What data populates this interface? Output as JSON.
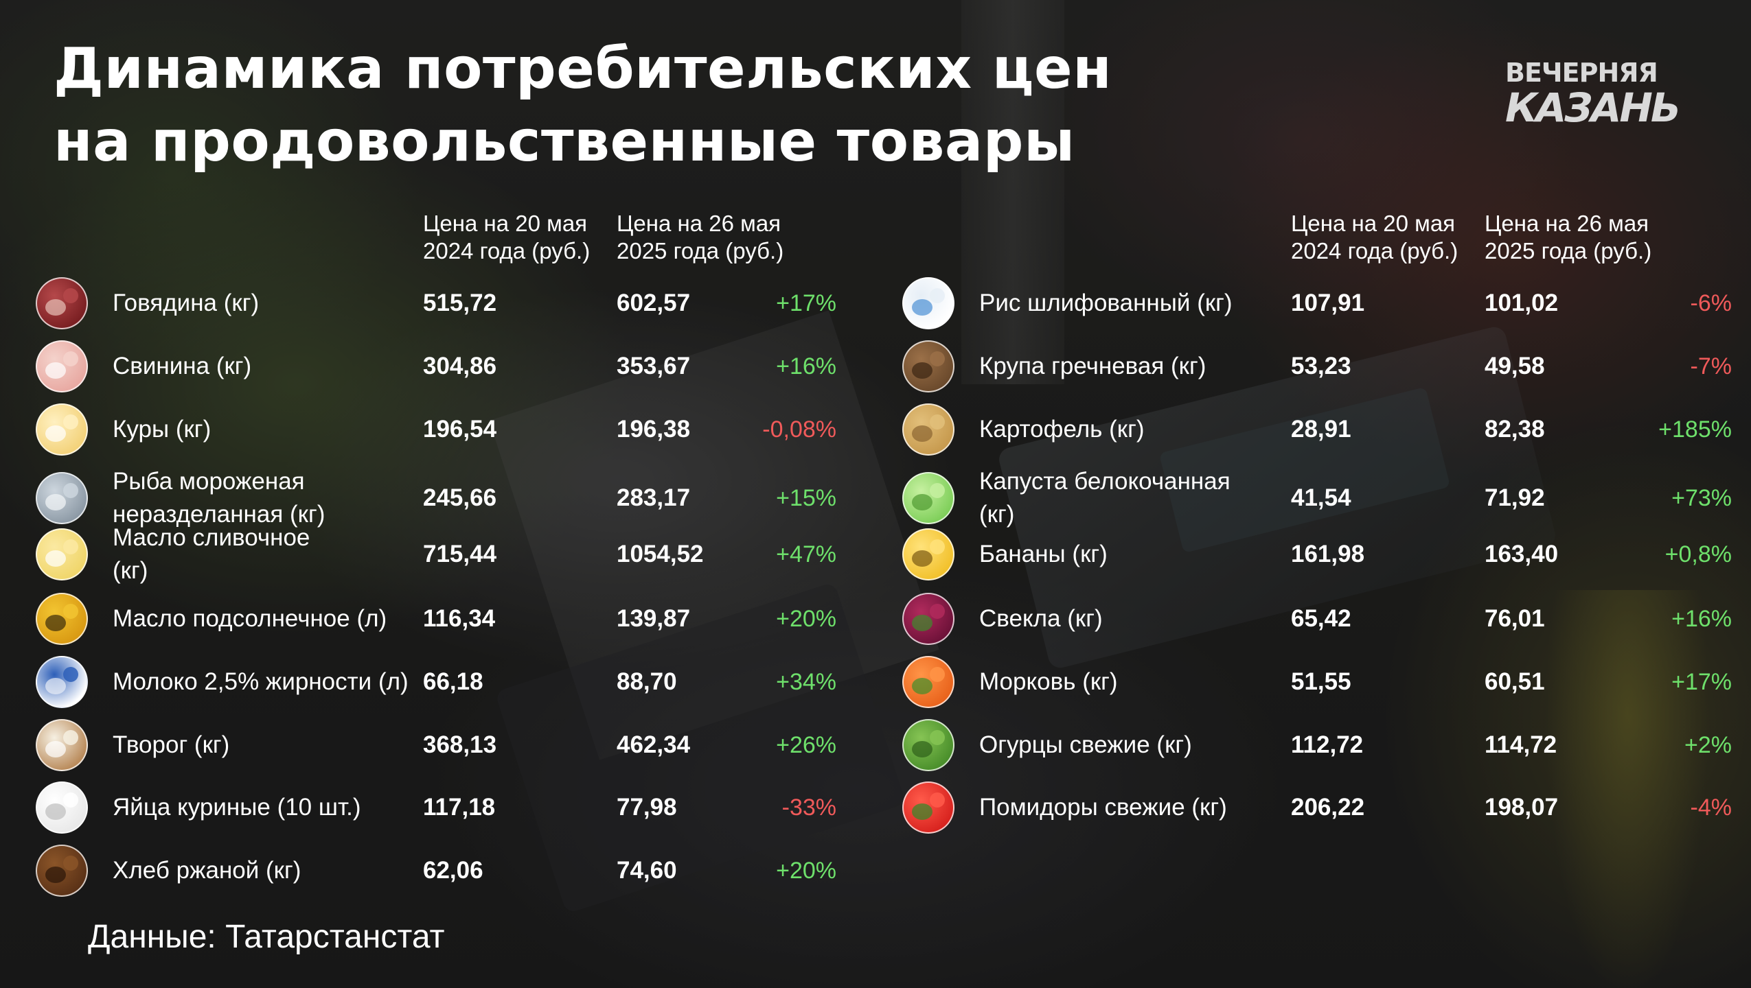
{
  "title": {
    "line1": "Динамика потребительских цен",
    "line2": "на продовольственные товары"
  },
  "logo": {
    "line1": "ВЕЧЕРНЯЯ",
    "line2": "КАЗАНЬ"
  },
  "columns": {
    "price_2024": "Цена на 20 мая\n2024 года (руб.)",
    "price_2025": "Цена на 26 мая\n2025 года (руб.)"
  },
  "colors": {
    "increase": "#6ee06b",
    "decrease": "#f05a5a"
  },
  "left_items": [
    {
      "icon": "beef-icon",
      "name": "Говядина (кг)",
      "price_2024": "515,72",
      "price_2025": "602,57",
      "change": "+17%",
      "direction": "up"
    },
    {
      "icon": "pork-icon",
      "name": "Свинина (кг)",
      "price_2024": "304,86",
      "price_2025": "353,67",
      "change": "+16%",
      "direction": "up"
    },
    {
      "icon": "chicken-icon",
      "name": "Куры (кг)",
      "price_2024": "196,54",
      "price_2025": "196,38",
      "change": "-0,08%",
      "direction": "down"
    },
    {
      "icon": "frozen-fish-icon",
      "name": "Рыба мороженая\nнеразделанная (кг)",
      "price_2024": "245,66",
      "price_2025": "283,17",
      "change": "+15%",
      "direction": "up"
    },
    {
      "icon": "butter-icon",
      "name": "Масло сливочное\n(кг)",
      "price_2024": "715,44",
      "price_2025": "1054,52",
      "change": "+47%",
      "direction": "up"
    },
    {
      "icon": "sunflower-oil-icon",
      "name": "Масло подсолнечное (л)",
      "price_2024": "116,34",
      "price_2025": "139,87",
      "change": "+20%",
      "direction": "up"
    },
    {
      "icon": "milk-icon",
      "name": "Молоко 2,5% жирности (л)",
      "price_2024": "66,18",
      "price_2025": "88,70",
      "change": "+34%",
      "direction": "up"
    },
    {
      "icon": "cottage-cheese-icon",
      "name": "Творог (кг)",
      "price_2024": "368,13",
      "price_2025": "462,34",
      "change": "+26%",
      "direction": "up"
    },
    {
      "icon": "eggs-icon",
      "name": "Яйца куриные (10 шт.)",
      "price_2024": "117,18",
      "price_2025": "77,98",
      "change": "-33%",
      "direction": "down"
    },
    {
      "icon": "rye-bread-icon",
      "name": "Хлеб ржаной (кг)",
      "price_2024": "62,06",
      "price_2025": "74,60",
      "change": "+20%",
      "direction": "up"
    }
  ],
  "right_items": [
    {
      "icon": "rice-icon",
      "name": "Рис шлифованный (кг)",
      "price_2024": "107,91",
      "price_2025": "101,02",
      "change": "-6%",
      "direction": "down"
    },
    {
      "icon": "buckwheat-icon",
      "name": "Крупа гречневая (кг)",
      "price_2024": "53,23",
      "price_2025": "49,58",
      "change": "-7%",
      "direction": "down"
    },
    {
      "icon": "potato-icon",
      "name": "Картофель (кг)",
      "price_2024": "28,91",
      "price_2025": "82,38",
      "change": "+185%",
      "direction": "up"
    },
    {
      "icon": "cabbage-icon",
      "name": "Капуста белокочанная\n(кг)",
      "price_2024": "41,54",
      "price_2025": "71,92",
      "change": "+73%",
      "direction": "up"
    },
    {
      "icon": "banana-icon",
      "name": "Бананы (кг)",
      "price_2024": "161,98",
      "price_2025": "163,40",
      "change": "+0,8%",
      "direction": "up"
    },
    {
      "icon": "beet-icon",
      "name": "Свекла (кг)",
      "price_2024": "65,42",
      "price_2025": "76,01",
      "change": "+16%",
      "direction": "up"
    },
    {
      "icon": "carrot-icon",
      "name": "Морковь (кг)",
      "price_2024": "51,55",
      "price_2025": "60,51",
      "change": "+17%",
      "direction": "up"
    },
    {
      "icon": "cucumber-icon",
      "name": "Огурцы свежие (кг)",
      "price_2024": "112,72",
      "price_2025": "114,72",
      "change": "+2%",
      "direction": "up"
    },
    {
      "icon": "tomato-icon",
      "name": "Помидоры свежие (кг)",
      "price_2024": "206,22",
      "price_2025": "198,07",
      "change": "-4%",
      "direction": "down"
    }
  ],
  "source": "Данные: Татарстанстат"
}
